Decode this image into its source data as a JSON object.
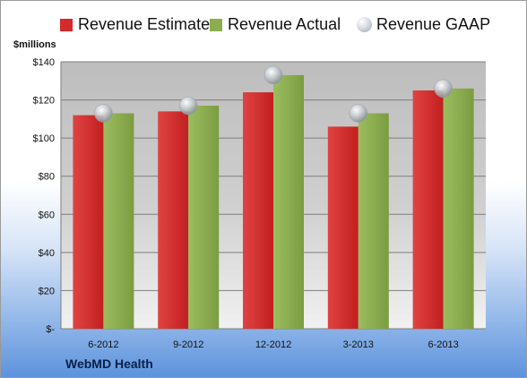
{
  "unit_label": "$millions",
  "company": "WebMD Health",
  "legend": [
    {
      "label": "Revenue Estimate",
      "color": "#d42a2a",
      "marker": "square"
    },
    {
      "label": "Revenue Actual",
      "color": "#8cad4f",
      "marker": "square"
    },
    {
      "label": "Revenue GAAP",
      "color": "#c4c9cf",
      "marker": "circle"
    }
  ],
  "chart_data": {
    "type": "bar",
    "categories": [
      "6-2012",
      "9-2012",
      "12-2012",
      "3-2013",
      "6-2013"
    ],
    "series": [
      {
        "name": "Revenue Estimate",
        "values": [
          112,
          114,
          124,
          106,
          125
        ]
      },
      {
        "name": "Revenue Actual",
        "values": [
          113,
          117,
          133,
          113,
          126
        ]
      },
      {
        "name": "Revenue GAAP",
        "values": [
          113,
          117,
          133,
          113,
          126
        ]
      }
    ],
    "ylim": [
      0,
      140
    ],
    "yticks": [
      0,
      20,
      40,
      60,
      80,
      100,
      120,
      140
    ],
    "ytick_labels": [
      "$-",
      "$20",
      "$40",
      "$60",
      "$80",
      "$100",
      "$120",
      "$140"
    ],
    "grid": true,
    "legend_position": "top"
  }
}
